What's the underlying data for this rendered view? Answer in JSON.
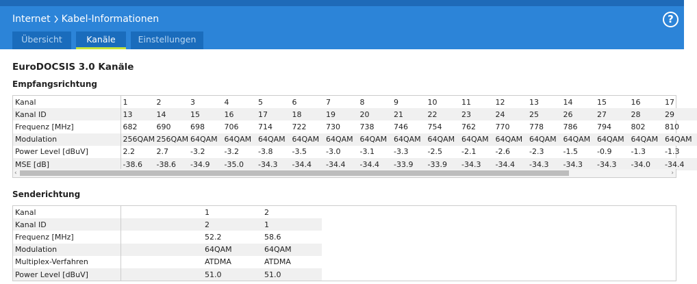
{
  "header": {
    "breadcrumb": [
      "Internet",
      "Kabel-Informationen"
    ],
    "help": "?",
    "tabs": [
      "Übersicht",
      "Kanäle",
      "Einstellungen"
    ]
  },
  "content": {
    "title": "EuroDOCSIS 3.0 Kanäle",
    "downstream": {
      "heading": "Empfangsrichtung",
      "rows": [
        [
          "Kanal",
          "1",
          "2",
          "3",
          "4",
          "5",
          "6",
          "7",
          "8",
          "9",
          "10",
          "11",
          "12",
          "13",
          "14",
          "15",
          "16",
          "17"
        ],
        [
          "Kanal ID",
          "13",
          "14",
          "15",
          "16",
          "17",
          "18",
          "19",
          "20",
          "21",
          "22",
          "23",
          "24",
          "25",
          "26",
          "27",
          "28",
          "29"
        ],
        [
          "Frequenz [MHz]",
          "682",
          "690",
          "698",
          "706",
          "714",
          "722",
          "730",
          "738",
          "746",
          "754",
          "762",
          "770",
          "778",
          "786",
          "794",
          "802",
          "810"
        ],
        [
          "Modulation",
          "256QAM",
          "256QAM",
          "64QAM",
          "64QAM",
          "64QAM",
          "64QAM",
          "64QAM",
          "64QAM",
          "64QAM",
          "64QAM",
          "64QAM",
          "64QAM",
          "64QAM",
          "64QAM",
          "64QAM",
          "64QAM",
          "64QAM"
        ],
        [
          "Power Level [dBuV]",
          "2.2",
          "2.7",
          "-3.2",
          "-3.2",
          "-3.8",
          "-3.5",
          "-3.0",
          "-3.1",
          "-3.3",
          "-2.5",
          "-2.1",
          "-2.6",
          "-2.3",
          "-1.5",
          "-0.9",
          "-1.3",
          "-1.3"
        ],
        [
          "MSE [dB]",
          "-38.6",
          "-38.6",
          "-34.9",
          "-35.0",
          "-34.3",
          "-34.4",
          "-34.4",
          "-34.4",
          "-33.9",
          "-33.9",
          "-34.3",
          "-34.4",
          "-34.3",
          "-34.3",
          "-34.3",
          "-34.0",
          "-34.4"
        ]
      ]
    },
    "upstream": {
      "heading": "Senderichtung",
      "rows": [
        [
          "Kanal",
          "1",
          "2"
        ],
        [
          "Kanal ID",
          "2",
          "1"
        ],
        [
          "Frequenz [MHz]",
          "52.2",
          "58.6"
        ],
        [
          "Modulation",
          "64QAM",
          "64QAM"
        ],
        [
          "Multiplex-Verfahren",
          "ATDMA",
          "ATDMA"
        ],
        [
          "Power Level [dBuV]",
          "51.0",
          "51.0"
        ]
      ]
    }
  }
}
